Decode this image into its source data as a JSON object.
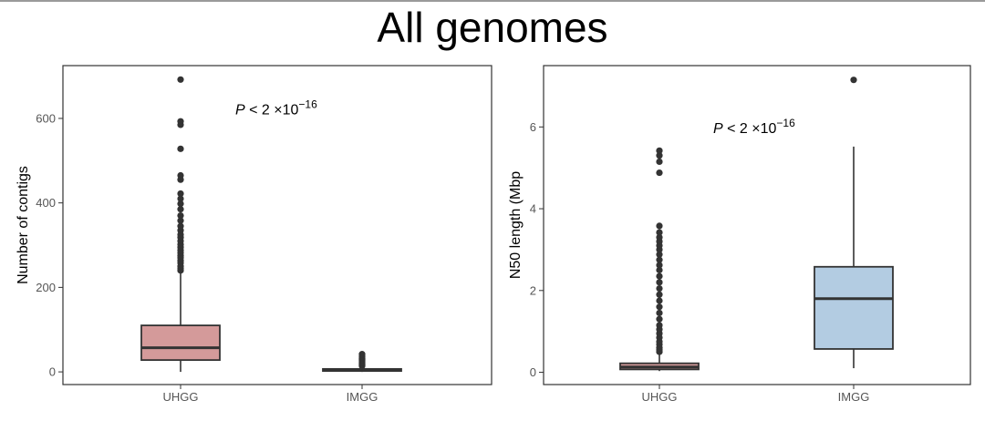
{
  "title": "All genomes",
  "chart_data": [
    {
      "type": "box",
      "title": "",
      "xlabel": "",
      "ylabel": "Number of contigs",
      "ylim": [
        -30,
        725
      ],
      "yticks": [
        0,
        200,
        400,
        600
      ],
      "yticklabels": [
        "0",
        "200",
        "400",
        "600"
      ],
      "grid": false,
      "annotation": {
        "p": "P",
        "text": " < 2 ×10",
        "sup": "−16"
      },
      "categories": [
        "UHGG",
        "IMGG"
      ],
      "boxes": [
        {
          "name": "UHGG",
          "color": "#d49a9a",
          "whisker_low": 0,
          "q1": 28,
          "median": 57,
          "q3": 110,
          "whisker_high": 235,
          "outliers": [
            240,
            245,
            250,
            258,
            263,
            270,
            275,
            282,
            288,
            295,
            302,
            310,
            318,
            325,
            335,
            345,
            358,
            370,
            385,
            398,
            410,
            422,
            455,
            465,
            528,
            585,
            593,
            692
          ]
        },
        {
          "name": "IMGG",
          "color": "#d49a9a",
          "whisker_low": 0,
          "q1": 2,
          "median": 4,
          "q3": 7,
          "whisker_high": 12,
          "outliers": [
            14,
            16,
            18,
            20,
            22,
            24,
            26,
            28,
            30,
            32,
            35,
            38,
            42
          ]
        }
      ]
    },
    {
      "type": "box",
      "title": "",
      "xlabel": "",
      "ylabel": "N50 length (Mbp",
      "ylim": [
        -0.3,
        7.5
      ],
      "yticks": [
        0,
        2,
        4,
        6
      ],
      "yticklabels": [
        "0",
        "2",
        "4",
        "6"
      ],
      "grid": false,
      "annotation": {
        "p": "P",
        "text": " < 2 ×10",
        "sup": "−16"
      },
      "categories": [
        "UHGG",
        "IMGG"
      ],
      "boxes": [
        {
          "name": "UHGG",
          "color": "#d49a9a",
          "whisker_low": 0.03,
          "q1": 0.07,
          "median": 0.13,
          "q3": 0.22,
          "whisker_high": 0.45,
          "outliers": [
            0.5,
            0.55,
            0.6,
            0.68,
            0.75,
            0.85,
            0.95,
            1.05,
            1.15,
            1.3,
            1.45,
            1.6,
            1.75,
            1.9,
            2.05,
            2.2,
            2.35,
            2.5,
            2.62,
            2.75,
            2.88,
            3.0,
            3.1,
            3.2,
            3.3,
            3.42,
            3.58,
            4.88,
            5.15,
            5.3,
            5.42
          ]
        },
        {
          "name": "IMGG",
          "color": "#b3cce2",
          "whisker_low": 0.1,
          "q1": 0.57,
          "median": 1.8,
          "q3": 2.58,
          "whisker_high": 5.52,
          "outliers": [
            7.15
          ]
        }
      ]
    }
  ]
}
